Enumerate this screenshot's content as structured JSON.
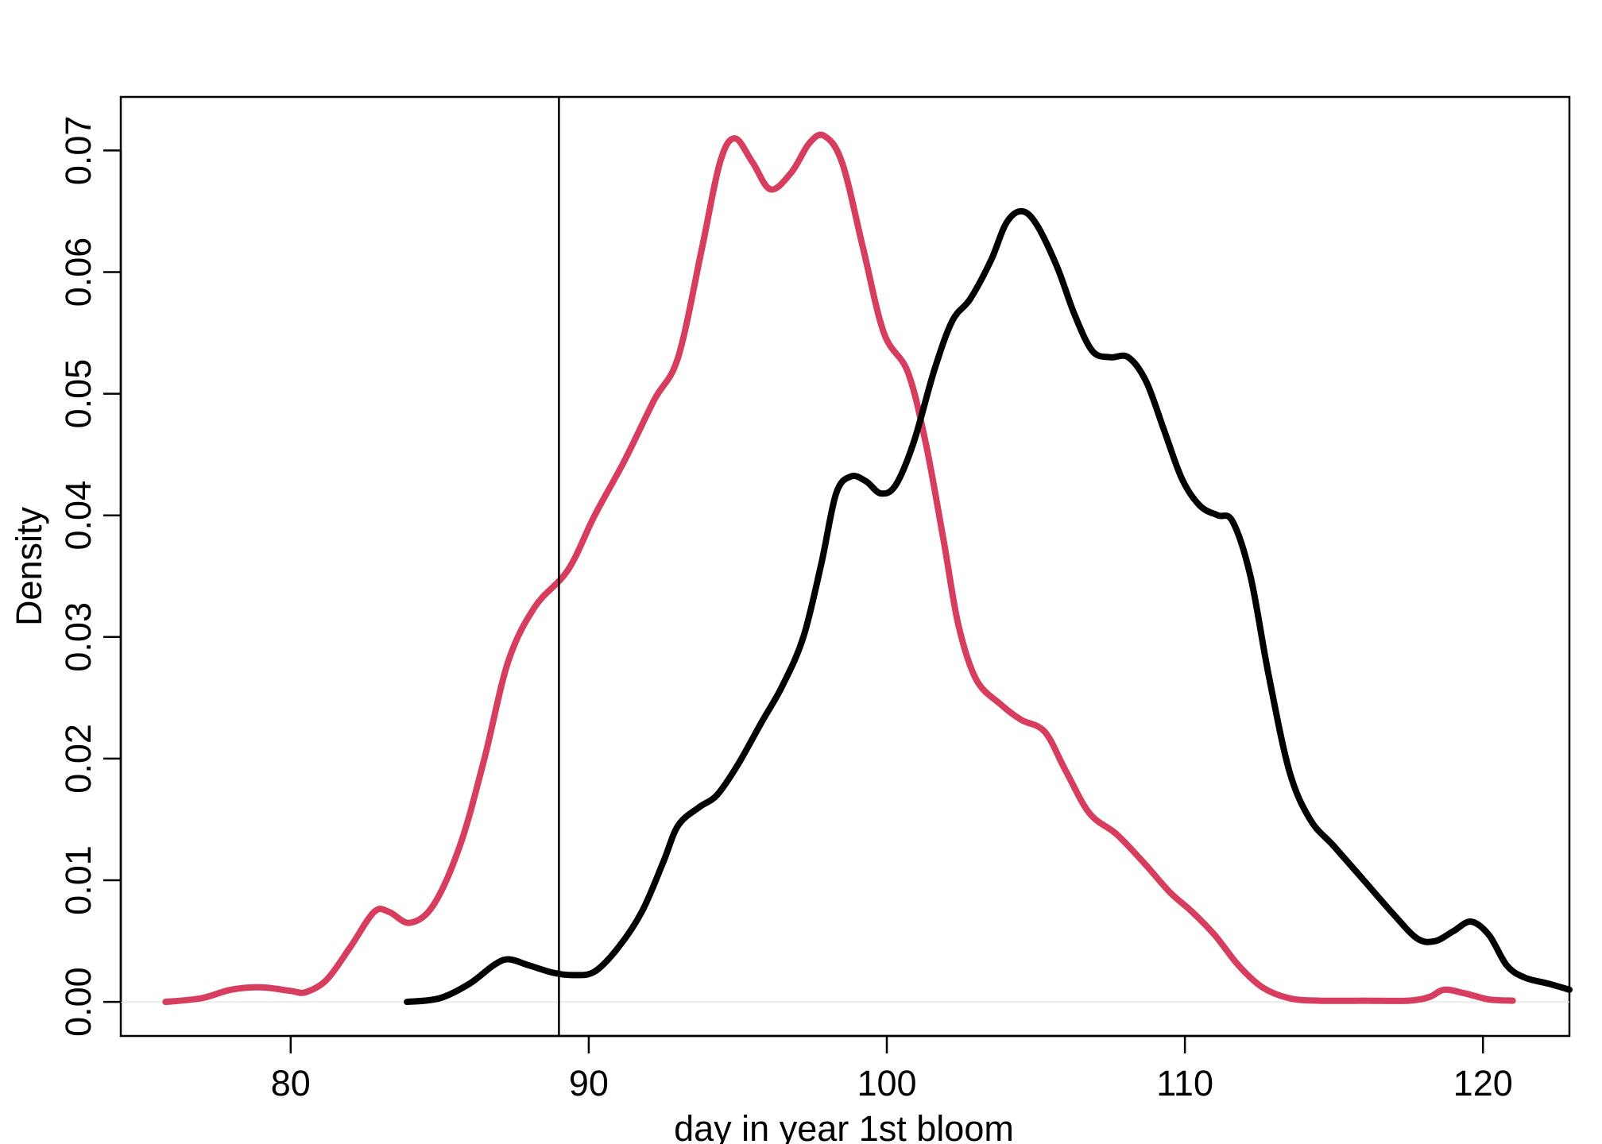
{
  "chart_data": {
    "type": "line",
    "title": "",
    "xlabel": "day in year 1st bloom",
    "ylabel": "Density",
    "xlim": [
      74.3,
      122.9
    ],
    "ylim": [
      -0.0028,
      0.0744
    ],
    "x_ticks": [
      80,
      90,
      100,
      110,
      120
    ],
    "x_tick_labels": [
      "80",
      "90",
      "100",
      "110",
      "120"
    ],
    "y_ticks": [
      0.0,
      0.01,
      0.02,
      0.03,
      0.04,
      0.05,
      0.06,
      0.07
    ],
    "y_tick_labels": [
      "0.00",
      "0.01",
      "0.02",
      "0.03",
      "0.04",
      "0.05",
      "0.06",
      "0.07"
    ],
    "grid": false,
    "vline_x": 89,
    "series": [
      {
        "color": "#D63D5E",
        "points": [
          [
            75.8,
            0.0
          ],
          [
            77.0,
            0.0003
          ],
          [
            78.0,
            0.001
          ],
          [
            79.0,
            0.0012
          ],
          [
            80.0,
            0.0009
          ],
          [
            80.5,
            0.0008
          ],
          [
            81.2,
            0.0018
          ],
          [
            82.0,
            0.0045
          ],
          [
            82.8,
            0.0074
          ],
          [
            83.3,
            0.0074
          ],
          [
            84.0,
            0.0065
          ],
          [
            84.8,
            0.008
          ],
          [
            85.7,
            0.013
          ],
          [
            86.5,
            0.02
          ],
          [
            87.3,
            0.028
          ],
          [
            88.2,
            0.0325
          ],
          [
            89.3,
            0.0355
          ],
          [
            90.2,
            0.04
          ],
          [
            91.2,
            0.0445
          ],
          [
            92.2,
            0.0495
          ],
          [
            93.0,
            0.053
          ],
          [
            93.8,
            0.062
          ],
          [
            94.4,
            0.069
          ],
          [
            94.9,
            0.071
          ],
          [
            95.5,
            0.069
          ],
          [
            96.1,
            0.0668
          ],
          [
            96.8,
            0.0682
          ],
          [
            97.4,
            0.0706
          ],
          [
            97.9,
            0.0712
          ],
          [
            98.5,
            0.069
          ],
          [
            99.2,
            0.062
          ],
          [
            99.9,
            0.055
          ],
          [
            100.7,
            0.0518
          ],
          [
            101.3,
            0.046
          ],
          [
            101.9,
            0.038
          ],
          [
            102.4,
            0.031
          ],
          [
            103.0,
            0.0265
          ],
          [
            103.8,
            0.0245
          ],
          [
            104.5,
            0.0232
          ],
          [
            105.3,
            0.0222
          ],
          [
            106.0,
            0.019
          ],
          [
            106.8,
            0.0155
          ],
          [
            107.7,
            0.0138
          ],
          [
            108.6,
            0.0115
          ],
          [
            109.5,
            0.009
          ],
          [
            110.2,
            0.0075
          ],
          [
            111.0,
            0.0055
          ],
          [
            111.8,
            0.003
          ],
          [
            112.6,
            0.0012
          ],
          [
            113.5,
            0.0003
          ],
          [
            114.5,
            0.0001
          ],
          [
            116.0,
            0.0001
          ],
          [
            117.5,
            0.0001
          ],
          [
            118.2,
            0.0004
          ],
          [
            118.7,
            0.001
          ],
          [
            119.4,
            0.0007
          ],
          [
            120.2,
            0.0002
          ],
          [
            121.0,
            0.0001
          ]
        ]
      },
      {
        "color": "#000000",
        "points": [
          [
            83.9,
            0.0
          ],
          [
            85.0,
            0.0003
          ],
          [
            86.0,
            0.0015
          ],
          [
            86.8,
            0.003
          ],
          [
            87.3,
            0.0035
          ],
          [
            88.0,
            0.003
          ],
          [
            88.8,
            0.0024
          ],
          [
            89.5,
            0.0022
          ],
          [
            90.2,
            0.0025
          ],
          [
            91.0,
            0.0045
          ],
          [
            91.8,
            0.0075
          ],
          [
            92.5,
            0.0115
          ],
          [
            93.0,
            0.0145
          ],
          [
            93.7,
            0.016
          ],
          [
            94.3,
            0.017
          ],
          [
            95.0,
            0.0195
          ],
          [
            95.8,
            0.023
          ],
          [
            96.5,
            0.026
          ],
          [
            97.2,
            0.03
          ],
          [
            97.8,
            0.036
          ],
          [
            98.3,
            0.0418
          ],
          [
            98.8,
            0.0432
          ],
          [
            99.3,
            0.0428
          ],
          [
            99.8,
            0.0418
          ],
          [
            100.3,
            0.0425
          ],
          [
            100.9,
            0.046
          ],
          [
            101.6,
            0.052
          ],
          [
            102.2,
            0.056
          ],
          [
            102.8,
            0.0578
          ],
          [
            103.5,
            0.061
          ],
          [
            104.0,
            0.064
          ],
          [
            104.5,
            0.065
          ],
          [
            105.0,
            0.064
          ],
          [
            105.7,
            0.0605
          ],
          [
            106.3,
            0.0565
          ],
          [
            106.9,
            0.0535
          ],
          [
            107.5,
            0.053
          ],
          [
            108.1,
            0.053
          ],
          [
            108.7,
            0.051
          ],
          [
            109.3,
            0.047
          ],
          [
            109.9,
            0.043
          ],
          [
            110.5,
            0.0408
          ],
          [
            111.1,
            0.04
          ],
          [
            111.6,
            0.0395
          ],
          [
            112.2,
            0.035
          ],
          [
            112.8,
            0.027
          ],
          [
            113.5,
            0.019
          ],
          [
            114.2,
            0.015
          ],
          [
            115.0,
            0.0128
          ],
          [
            116.0,
            0.01
          ],
          [
            117.0,
            0.0072
          ],
          [
            117.8,
            0.0052
          ],
          [
            118.4,
            0.005
          ],
          [
            119.0,
            0.0058
          ],
          [
            119.6,
            0.0066
          ],
          [
            120.2,
            0.0055
          ],
          [
            120.8,
            0.003
          ],
          [
            121.4,
            0.002
          ],
          [
            122.2,
            0.0015
          ],
          [
            122.9,
            0.001
          ]
        ]
      }
    ]
  }
}
